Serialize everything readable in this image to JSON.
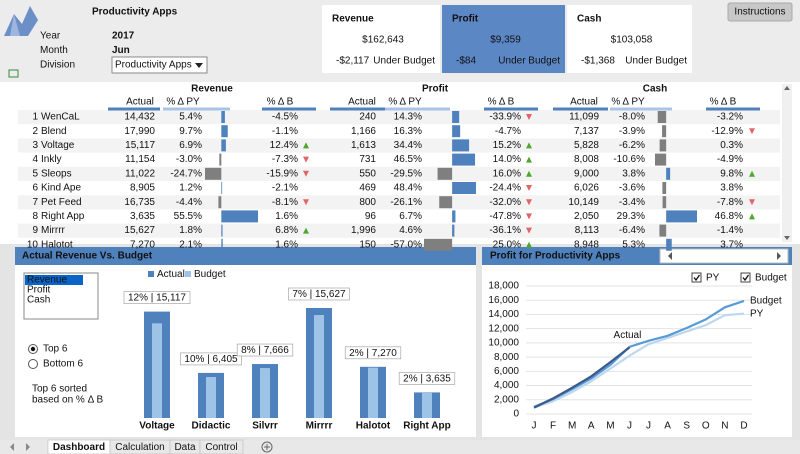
{
  "header": {
    "title": "Productivity Apps",
    "button": "Instructions",
    "fields": [
      {
        "label": "Year",
        "value": "2017"
      },
      {
        "label": "Month",
        "value": "Jun"
      },
      {
        "label": "Division",
        "value": "Productivity Apps"
      }
    ]
  },
  "kpis": {
    "selected": 1,
    "cards": [
      {
        "title": "Revenue",
        "value": "$162,643",
        "variance": "-$2,117",
        "status": "Under Budget"
      },
      {
        "title": "Profit",
        "value": "$9,359",
        "variance": "-$84",
        "status": "Under Budget"
      },
      {
        "title": "Cash",
        "value": "$103,058",
        "variance": "-$1,368",
        "status": "Under Budget"
      }
    ]
  },
  "table": {
    "groups": [
      "Revenue",
      "Profit",
      "Cash"
    ],
    "columns": [
      "Actual",
      "% Δ PY",
      "% Δ B"
    ],
    "rows": [
      {
        "rank": 1,
        "name": "WenCaL",
        "values": [
          [
            "14,432",
            "5.4%",
            "-4.5%"
          ],
          [
            "240",
            "14.3%",
            "-33.9%"
          ],
          [
            "11,099",
            "-8.0%",
            "-3.2%"
          ]
        ]
      },
      {
        "rank": 2,
        "name": "Blend",
        "values": [
          [
            "17,990",
            "9.7%",
            "-1.1%"
          ],
          [
            "1,166",
            "16.3%",
            "-4.7%"
          ],
          [
            "7,137",
            "-3.9%",
            "-12.9%"
          ]
        ]
      },
      {
        "rank": 3,
        "name": "Voltage",
        "values": [
          [
            "15,117",
            "6.9%",
            "12.4%"
          ],
          [
            "1,613",
            "34.4%",
            "15.2%"
          ],
          [
            "5,828",
            "-6.2%",
            "0.3%"
          ]
        ]
      },
      {
        "rank": 4,
        "name": "Inkly",
        "values": [
          [
            "11,154",
            "-3.0%",
            "-7.3%"
          ],
          [
            "731",
            "46.5%",
            "14.0%"
          ],
          [
            "8,008",
            "-10.6%",
            "-4.9%"
          ]
        ]
      },
      {
        "rank": 5,
        "name": "Sleops",
        "values": [
          [
            "11,022",
            "-24.7%",
            "-15.9%"
          ],
          [
            "550",
            "-29.5%",
            "16.0%"
          ],
          [
            "9,000",
            "3.8%",
            "9.8%"
          ]
        ]
      },
      {
        "rank": 6,
        "name": "Kind Ape",
        "values": [
          [
            "8,905",
            "1.2%",
            "-2.1%"
          ],
          [
            "469",
            "48.4%",
            "-24.4%"
          ],
          [
            "6,026",
            "-3.6%",
            "3.8%"
          ]
        ]
      },
      {
        "rank": 7,
        "name": "Pet Feed",
        "values": [
          [
            "16,735",
            "-4.4%",
            "-8.1%"
          ],
          [
            "800",
            "-26.1%",
            "-32.0%"
          ],
          [
            "10,149",
            "-3.4%",
            "-7.8%"
          ]
        ]
      },
      {
        "rank": 8,
        "name": "Right App",
        "values": [
          [
            "3,635",
            "55.5%",
            "1.6%"
          ],
          [
            "96",
            "6.7%",
            "-47.8%"
          ],
          [
            "2,050",
            "29.3%",
            "46.8%"
          ]
        ]
      },
      {
        "rank": 9,
        "name": "Mirrrr",
        "values": [
          [
            "15,627",
            "1.8%",
            "6.8%"
          ],
          [
            "1,996",
            "4.6%",
            "-36.1%"
          ],
          [
            "8,113",
            "-6.4%",
            "-1.4%"
          ]
        ]
      },
      {
        "rank": 10,
        "name": "Halotot",
        "values": [
          [
            "7,270",
            "2.1%",
            "1.6%"
          ],
          [
            "150",
            "-57.0%",
            "25.0%"
          ],
          [
            "8,948",
            "5.3%",
            "3.7%"
          ]
        ]
      }
    ]
  },
  "bar_controls": {
    "measures": [
      "Revenue",
      "Profit",
      "Cash"
    ],
    "selected": 0,
    "sort_options": [
      "Top 6",
      "Bottom 6"
    ],
    "sort_selected": 0,
    "note": [
      "Top 6 sorted",
      "based on % Δ B"
    ]
  },
  "line_controls": {
    "options": [
      "PY",
      "Budget"
    ],
    "checked": [
      true,
      true
    ]
  },
  "chart_data": [
    {
      "type": "bar",
      "title": "Actual Revenue Vs. Budget",
      "categories": [
        "Voltage",
        "Didactic",
        "Silvrr",
        "Mirrrr",
        "Halotot",
        "Right App"
      ],
      "series": [
        {
          "name": "Actual",
          "color": "#4f81bd",
          "values": [
            15117,
            6405,
            7666,
            15627,
            7270,
            3635
          ],
          "value_labels": [
            "12% | 15,117",
            "10% | 6,405",
            "8% | 7,666",
            "7% | 15,627",
            "2% | 7,270",
            "2% | 3,635"
          ]
        },
        {
          "name": "Budget",
          "color": "#9dc3e6",
          "values": [
            13449,
            5823,
            7098,
            14632,
            7155,
            3578
          ]
        }
      ]
    },
    {
      "type": "line",
      "title": "Profit for Productivity Apps",
      "categories": [
        "J",
        "F",
        "M",
        "A",
        "M",
        "J",
        "J",
        "A",
        "S",
        "O",
        "N",
        "D"
      ],
      "series": [
        {
          "name": "Actual",
          "color": "#3b5a8a",
          "values": [
            900,
            2200,
            3700,
            5300,
            7300,
            9359,
            null,
            null,
            null,
            null,
            null,
            null
          ]
        },
        {
          "name": "Budget",
          "color": "#5b9bd5",
          "values": [
            1000,
            2100,
            3500,
            5000,
            6900,
            9443,
            10300,
            11000,
            12100,
            13300,
            15000,
            15900
          ]
        },
        {
          "name": "PY",
          "color": "#bdd7ee",
          "values": [
            900,
            1800,
            3100,
            4600,
            6400,
            8200,
            9800,
            10700,
            11600,
            12500,
            13900,
            14100
          ]
        }
      ],
      "ylim": [
        0,
        18000
      ],
      "yticks": [
        0,
        {
          "value": 2000,
          "label": "2,000"
        },
        {
          "value": 4000,
          "label": "4,000"
        },
        {
          "value": 6000,
          "label": "6,000"
        },
        {
          "value": 8000,
          "label": "8,000"
        },
        {
          "value": 10000,
          "label": "10,000"
        },
        {
          "value": 12000,
          "label": "12,000"
        },
        {
          "value": 14000,
          "label": "14,000"
        },
        {
          "value": 16000,
          "label": "16,000"
        },
        {
          "value": 18000,
          "label": "18,000"
        }
      ],
      "grid": true
    }
  ],
  "tabs": {
    "items": [
      "Dashboard",
      "Calculation",
      "Data",
      "Control"
    ],
    "active": 0
  }
}
